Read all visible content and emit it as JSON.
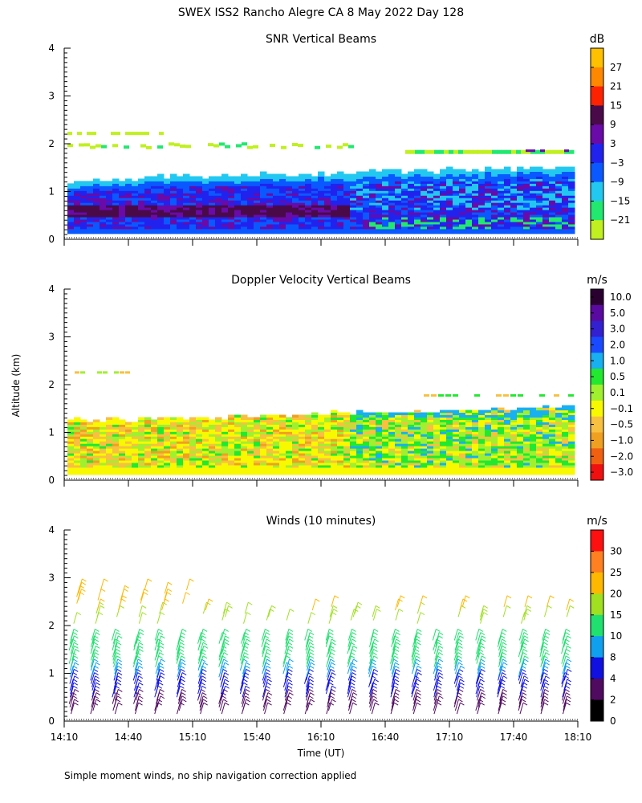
{
  "figure": {
    "title": "SWEX ISS2 Rancho Alegre CA   8 May 2022 Day 128",
    "ylabel": "Altitude (km)",
    "xlabel": "Time (UT)",
    "footnote": "Simple moment winds, no ship navigation correction applied"
  },
  "chart_data": [
    {
      "type": "heatmap",
      "title": "SNR Vertical Beams",
      "xlabel": "Time (UT)",
      "ylabel": "Altitude (km)",
      "x_range": [
        "14:10",
        "18:10"
      ],
      "ylim": [
        0,
        4
      ],
      "y_ticks": [
        "0",
        "1",
        "2",
        "3",
        "4"
      ],
      "colorbar": {
        "unit": "dB",
        "labels": [
          "27",
          "21",
          "15",
          "9",
          "3",
          "−3",
          "−9",
          "−15",
          "−21"
        ],
        "colors": [
          "#ffc000",
          "#ff8800",
          "#ff2200",
          "#4a0a4a",
          "#6a0aa8",
          "#2222ee",
          "#0a58ff",
          "#22c8f0",
          "#22e870",
          "#c0f020"
        ]
      },
      "description_layers": [
        {
          "name": "dark-core",
          "y_from": 0.3,
          "y_to": 0.7,
          "color": "#4a0a4a"
        },
        {
          "name": "purple",
          "y_from": 0.2,
          "y_to": 0.85,
          "color": "#6a0aa8"
        },
        {
          "name": "blue",
          "y_from": 0.15,
          "y_to": 1.25,
          "color": "#2222ee"
        },
        {
          "name": "cyan",
          "y_from": 0.15,
          "y_to": 1.35,
          "color": "#22c8f0"
        },
        {
          "name": "green-top",
          "y_from": 1.25,
          "y_to": 1.45,
          "color": "#22e870"
        }
      ]
    },
    {
      "type": "heatmap",
      "title": "Doppler Velocity Vertical Beams",
      "xlabel": "Time (UT)",
      "ylabel": "Altitude (km)",
      "x_range": [
        "14:10",
        "18:10"
      ],
      "ylim": [
        0,
        4
      ],
      "y_ticks": [
        "0",
        "1",
        "2",
        "3",
        "4"
      ],
      "colorbar": {
        "unit": "m/s",
        "labels": [
          "10.0",
          "5.0",
          "3.0",
          "2.0",
          "1.0",
          "0.5",
          "0.1",
          "−0.1",
          "−0.5",
          "−1.0",
          "−2.0",
          "−3.0"
        ],
        "colors": [
          "#2a0030",
          "#5a0aa0",
          "#3320d0",
          "#1a4aff",
          "#18b0f0",
          "#22e830",
          "#a0f030",
          "#f8f800",
          "#f8c040",
          "#f0a020",
          "#f06010",
          "#f01010"
        ]
      }
    },
    {
      "type": "wind-barbs",
      "title": "Winds (10 minutes)",
      "xlabel": "Time (UT)",
      "ylabel": "Altitude (km)",
      "x_range": [
        "14:10",
        "18:10"
      ],
      "x_ticks": [
        "14:10",
        "14:40",
        "15:10",
        "15:40",
        "16:10",
        "16:40",
        "17:10",
        "17:40",
        "18:10"
      ],
      "ylim": [
        0,
        4
      ],
      "y_ticks": [
        "0",
        "1",
        "2",
        "3",
        "4"
      ],
      "interval_minutes": 10,
      "colorbar": {
        "unit": "m/s",
        "labels": [
          "30",
          "25",
          "20",
          "15",
          "10",
          "8",
          "4",
          "2",
          "0"
        ],
        "colors": [
          "#ff1010",
          "#ff8020",
          "#ffb800",
          "#a0e020",
          "#20e070",
          "#10a0f0",
          "#1010e0",
          "#500a60",
          "#000000"
        ]
      },
      "speed_by_altitude_km": [
        {
          "alt": 0.3,
          "speed": 5
        },
        {
          "alt": 0.7,
          "speed": 7
        },
        {
          "alt": 1.2,
          "speed": 10
        },
        {
          "alt": 1.5,
          "speed": 14
        },
        {
          "alt": 2.2,
          "speed": 18
        },
        {
          "alt": 2.6,
          "speed": 20
        }
      ]
    }
  ]
}
